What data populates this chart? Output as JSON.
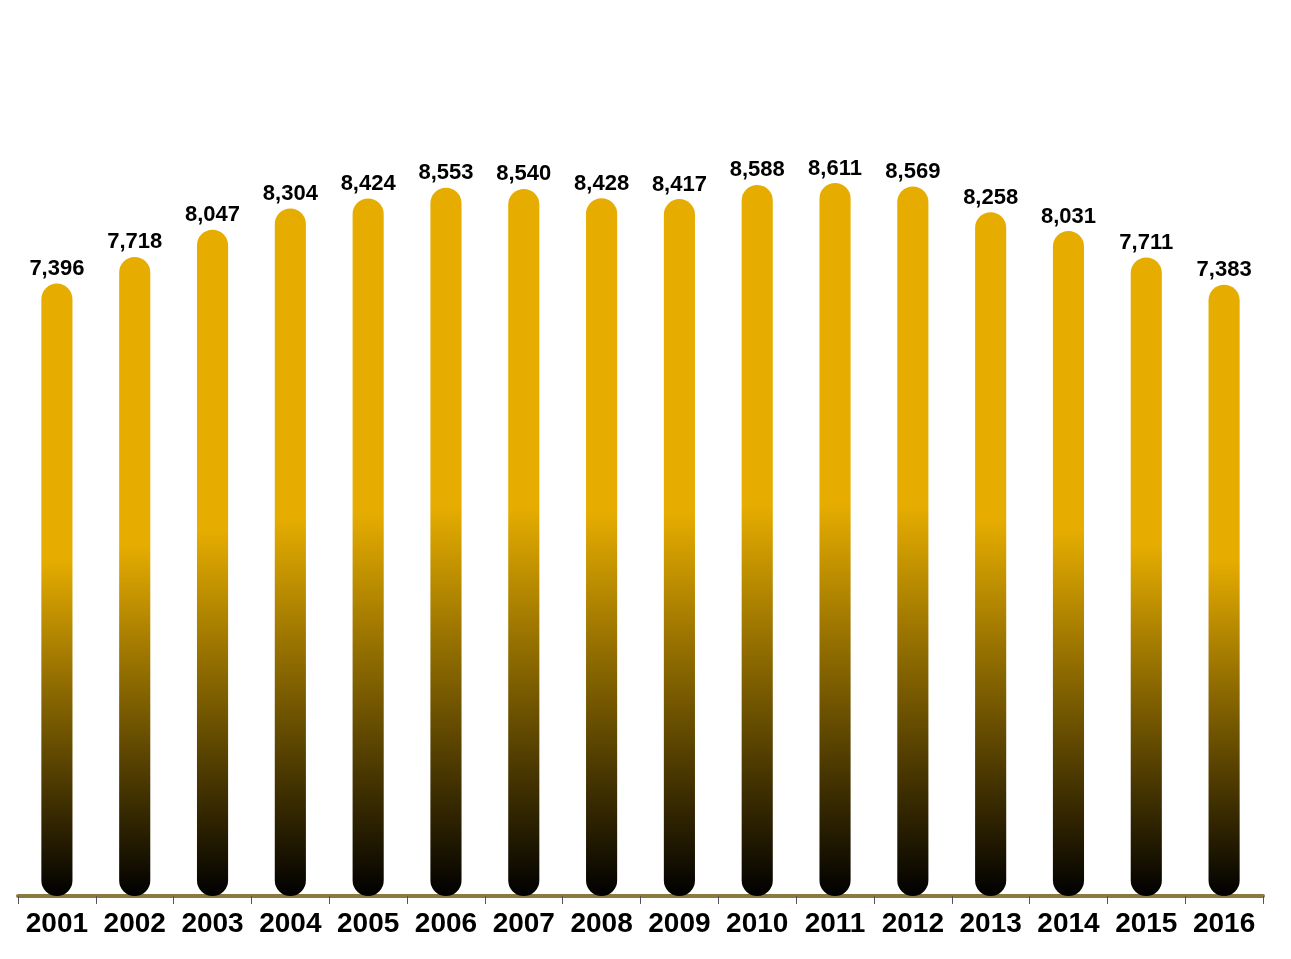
{
  "chart_data": {
    "type": "bar",
    "categories": [
      "2001",
      "2002",
      "2003",
      "2004",
      "2005",
      "2006",
      "2007",
      "2008",
      "2009",
      "2010",
      "2011",
      "2012",
      "2013",
      "2014",
      "2015",
      "2016"
    ],
    "values": [
      7396,
      7718,
      8047,
      8304,
      8424,
      8553,
      8540,
      8428,
      8417,
      8588,
      8611,
      8569,
      8258,
      8031,
      7711,
      7383
    ],
    "value_labels": [
      "7,396",
      "7,718",
      "8,047",
      "8,304",
      "8,424",
      "8,553",
      "8,540",
      "8,428",
      "8,417",
      "8,588",
      "8,611",
      "8,569",
      "8,258",
      "8,031",
      "7,711",
      "7,383"
    ],
    "color": "#e6ad00"
  }
}
